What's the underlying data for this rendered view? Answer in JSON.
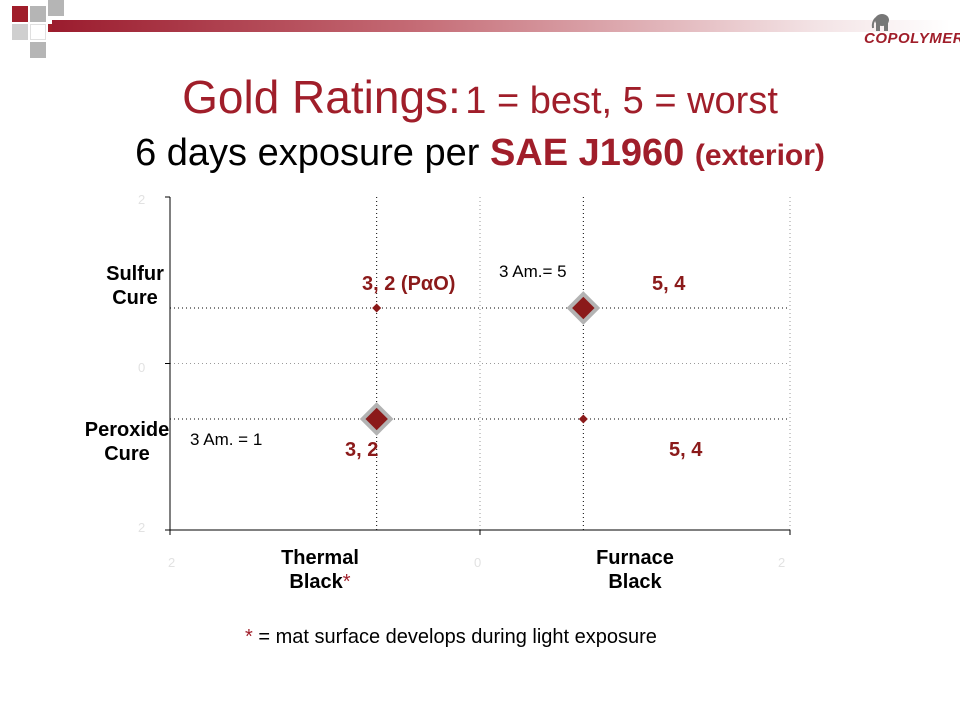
{
  "logo": {
    "text": "COPOLYMER",
    "icon": "elephant-logo-icon"
  },
  "title": {
    "line1_main": "Gold Ratings:",
    "line1_sub": "1 = best, 5 = worst",
    "line2_main": "6 days exposure per",
    "line2_std": "SAE J1960",
    "line2_paren": "(exterior)"
  },
  "colors": {
    "brand": "#a01e2a",
    "marker": "#8b1a1a",
    "marker_outline": "#b3b3b3"
  },
  "chart_data": {
    "type": "scatter",
    "x_categories": [
      "Thermal Black",
      "Furnace Black"
    ],
    "y_categories": [
      "Peroxide Cure",
      "Sulfur Cure"
    ],
    "xlim": [
      -1.5,
      1.5
    ],
    "ylim": [
      -1.5,
      1.5
    ],
    "grid": true,
    "points": [
      {
        "x": -0.5,
        "y": 0.5,
        "label": "3, 2 (PαO)",
        "size": "small"
      },
      {
        "x": 0.5,
        "y": 0.5,
        "label": "5, 4",
        "size": "large"
      },
      {
        "x": -0.5,
        "y": -0.5,
        "label": "3, 2",
        "size": "large"
      },
      {
        "x": 0.5,
        "y": -0.5,
        "label": "5, 4",
        "size": "small"
      }
    ],
    "annotations": [
      {
        "text": "3 Am.= 5"
      },
      {
        "text": "3 Am. = 1"
      }
    ],
    "x_tick_words": [
      {
        "line1": "Thermal",
        "line2": "Black",
        "star": "*"
      },
      {
        "line1": "Furnace",
        "line2": "Black",
        "star": ""
      }
    ],
    "y_tick_words": [
      {
        "line1": "Sulfur",
        "line2": "Cure"
      },
      {
        "line1": "Peroxide",
        "line2": "Cure"
      }
    ]
  },
  "footnote": {
    "star": "*",
    "text": " = mat surface develops during light exposure"
  }
}
